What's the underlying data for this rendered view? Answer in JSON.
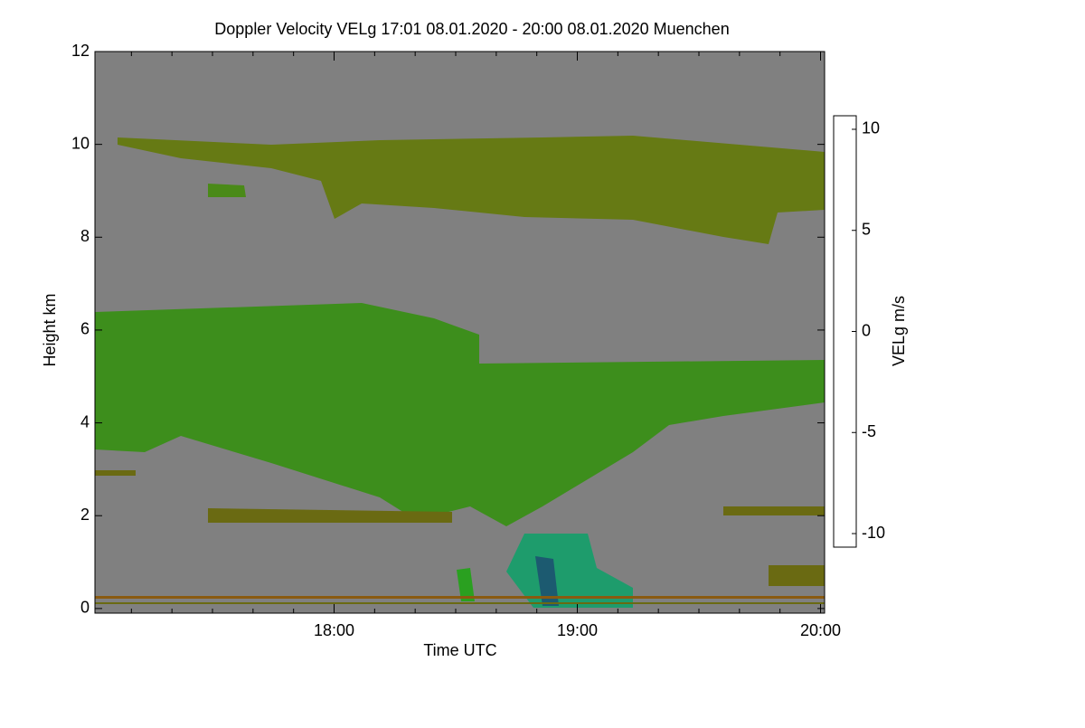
{
  "chart_data": {
    "type": "heatmap",
    "title": "Doppler Velocity VELg   17:01 08.01.2020 - 20:00 08.01.2020 Muenchen",
    "xlabel": "Time UTC",
    "ylabel": "Height km",
    "xlim": [
      17.0167,
      20.0167
    ],
    "xticks": [
      {
        "value": 18,
        "label": "18:00"
      },
      {
        "value": 19,
        "label": "19:00"
      },
      {
        "value": 20,
        "label": "20:00"
      }
    ],
    "ylim": [
      -0.1,
      12
    ],
    "yticks": [
      0,
      2,
      4,
      6,
      8,
      10,
      12
    ],
    "background": "#808080",
    "colorbar": {
      "label": "VELg m/s",
      "clim": [
        -10.67,
        10.67
      ],
      "ticks": [
        -10,
        -5,
        0,
        5,
        10
      ],
      "colormap": [
        "#000000",
        "#1c2f6e",
        "#1a9a78",
        "#20a020",
        "#6b6a10",
        "#d01010",
        "#e08a10",
        "#ffff00"
      ]
    }
  }
}
